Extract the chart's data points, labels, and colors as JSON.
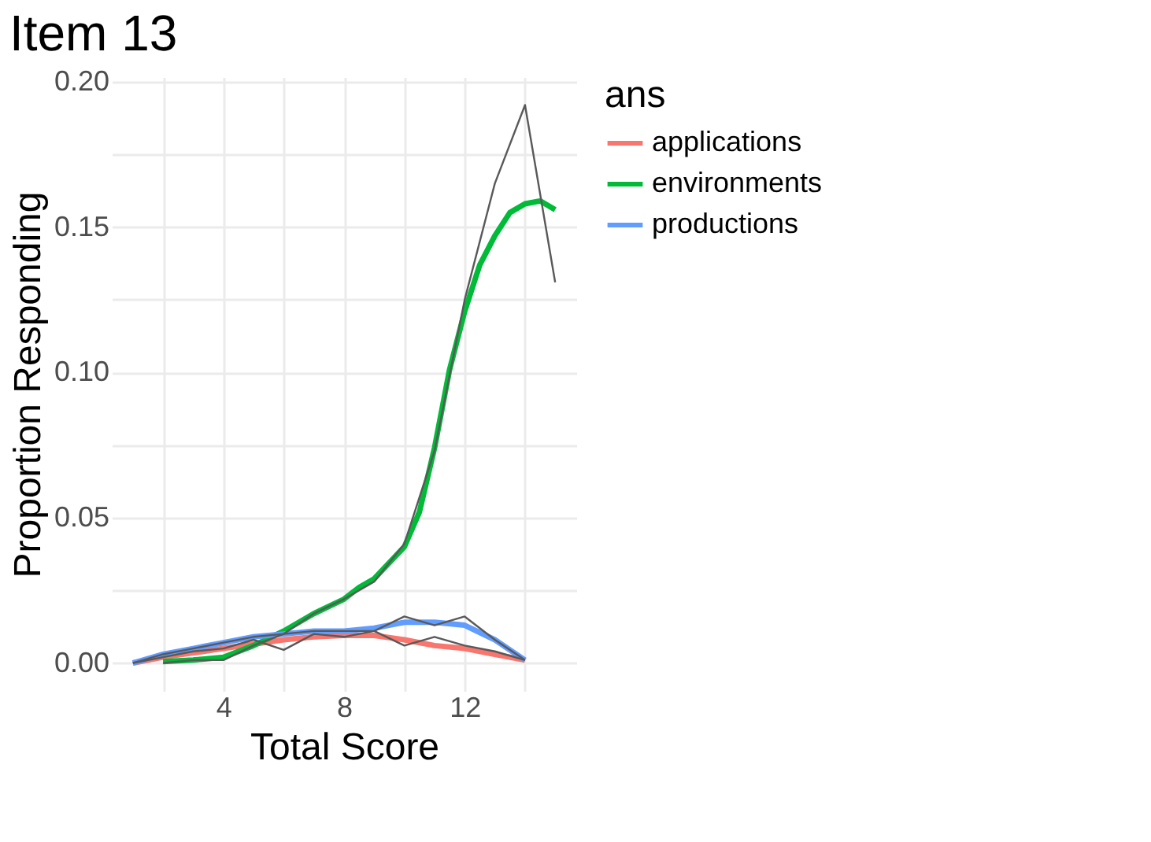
{
  "chart_data": {
    "type": "line",
    "title": "Item 13",
    "xlabel": "Total Score",
    "ylabel": "Proportion Responding",
    "legend_title": "ans",
    "legend": "right",
    "grid": true,
    "marker": "none",
    "line_style": "solid",
    "xlim": [
      0.3,
      15.7
    ],
    "ylim": [
      -0.0096,
      0.2016
    ],
    "xticks": [
      {
        "value": 2,
        "label": null
      },
      4,
      {
        "value": 6,
        "label": null
      },
      8,
      {
        "value": 10,
        "label": null
      },
      12,
      {
        "value": 14,
        "label": null
      }
    ],
    "yticks": [
      {
        "value": 0,
        "label": "0.00"
      },
      {
        "value": 0.025,
        "label": null
      },
      {
        "value": 0.05,
        "label": "0.05"
      },
      {
        "value": 0.075,
        "label": null
      },
      {
        "value": 0.1,
        "label": "0.10"
      },
      {
        "value": 0.125,
        "label": null
      },
      {
        "value": 0.15,
        "label": "0.15"
      },
      {
        "value": 0.175,
        "label": null
      },
      {
        "value": 0.2,
        "label": "0.20"
      }
    ],
    "series": [
      {
        "color": "#595959",
        "x": [
          2,
          3,
          4,
          5,
          6,
          7,
          8,
          9,
          10,
          11,
          12,
          13,
          14,
          15
        ],
        "values": [
          0.0,
          0.001,
          0.001,
          0.006,
          0.01,
          0.017,
          0.022,
          0.028,
          0.041,
          0.073,
          0.125,
          0.165,
          0.192,
          0.131
        ]
      },
      {
        "color": "#595959",
        "x": [
          1,
          2,
          3,
          4,
          5,
          6,
          7,
          8,
          9,
          10,
          11,
          12,
          13,
          14
        ],
        "values": [
          0.0,
          0.002,
          0.004,
          0.005,
          0.008,
          0.0045,
          0.01,
          0.009,
          0.011,
          0.006,
          0.009,
          0.006,
          0.004,
          0.001
        ]
      },
      {
        "color": "#595959",
        "x": [
          1,
          2,
          3,
          4,
          5,
          6,
          7,
          8,
          9,
          10,
          11,
          12,
          13,
          14
        ],
        "values": [
          0.0,
          0.003,
          0.005,
          0.007,
          0.009,
          0.01,
          0.011,
          0.011,
          0.011,
          0.016,
          0.013,
          0.016,
          0.008,
          0.001
        ]
      },
      {
        "name": "applications",
        "color": "#f8766d",
        "x": [
          1,
          2,
          3,
          4,
          5,
          6,
          7,
          8,
          9,
          10,
          11,
          12,
          13,
          14
        ],
        "values": [
          0.0,
          0.002,
          0.0035,
          0.005,
          0.0065,
          0.008,
          0.009,
          0.0095,
          0.0095,
          0.008,
          0.006,
          0.005,
          0.003,
          0.001
        ]
      },
      {
        "name": "environments",
        "color": "#00ba38",
        "x": [
          2,
          3,
          4,
          5,
          6,
          7,
          8,
          8.5,
          9,
          10,
          10.5,
          11,
          11.5,
          12,
          12.5,
          13,
          13.5,
          14,
          14.5,
          15
        ],
        "values": [
          0.0005,
          0.001,
          0.002,
          0.006,
          0.011,
          0.017,
          0.022,
          0.026,
          0.029,
          0.04,
          0.052,
          0.074,
          0.101,
          0.121,
          0.137,
          0.147,
          0.155,
          0.158,
          0.159,
          0.156
        ]
      },
      {
        "name": "productions",
        "color": "#619cff",
        "x": [
          1,
          2,
          3,
          4,
          5,
          6,
          7,
          8,
          9,
          10,
          11,
          12,
          13,
          14
        ],
        "values": [
          0.0,
          0.003,
          0.005,
          0.007,
          0.009,
          0.01,
          0.011,
          0.011,
          0.012,
          0.014,
          0.014,
          0.013,
          0.008,
          0.001
        ]
      }
    ]
  }
}
